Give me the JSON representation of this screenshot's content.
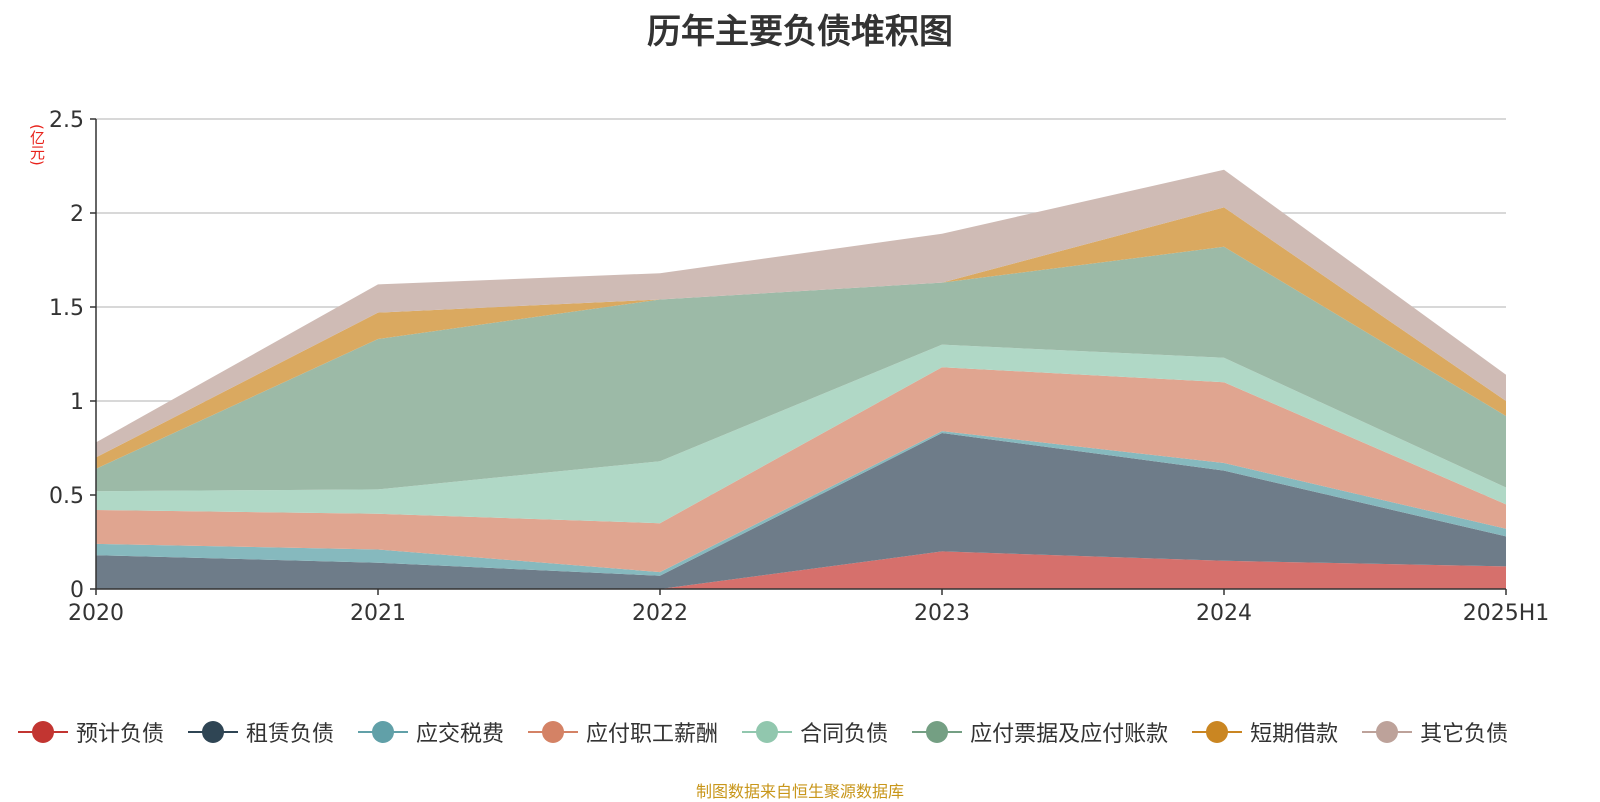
{
  "title": "历年主要负债堆积图",
  "unit_label": "(亿元)",
  "source_note": "制图数据来自恒生聚源数据库",
  "chart_data": {
    "type": "area",
    "stacked": true,
    "title": "历年主要负债堆积图",
    "ylabel": "(亿元)",
    "ylim": [
      0,
      2.5
    ],
    "yticks": [
      "0",
      "0.5",
      "1",
      "1.5",
      "2",
      "2.5"
    ],
    "x": [
      "2020",
      "2021",
      "2022",
      "2023",
      "2024",
      "2025H1"
    ],
    "grid": true,
    "legend_position": "bottom",
    "series": [
      {
        "name": "预计负债",
        "color": "#d6706c",
        "legend_color": "#c23531",
        "values": [
          0,
          0,
          0,
          0.2,
          0.15,
          0.12
        ]
      },
      {
        "name": "租赁负债",
        "color": "#6e7c89",
        "legend_color": "#2f4554",
        "values": [
          0.18,
          0.14,
          0.07,
          0.63,
          0.48,
          0.16
        ]
      },
      {
        "name": "应交税费",
        "color": "#86b9be",
        "legend_color": "#61a0a8",
        "values": [
          0.06,
          0.07,
          0.02,
          0.01,
          0.04,
          0.04
        ]
      },
      {
        "name": "应付职工薪酬",
        "color": "#e0a590",
        "legend_color": "#d48265",
        "values": [
          0.18,
          0.19,
          0.26,
          0.34,
          0.43,
          0.13
        ]
      },
      {
        "name": "合同负债",
        "color": "#b0d8c6",
        "legend_color": "#91c7ae",
        "values": [
          0.1,
          0.13,
          0.33,
          0.12,
          0.13,
          0.09
        ]
      },
      {
        "name": "应付票据及应付账款",
        "color": "#9cbaa7",
        "legend_color": "#749f83",
        "values": [
          0.12,
          0.8,
          0.86,
          0.33,
          0.59,
          0.38
        ]
      },
      {
        "name": "短期借款",
        "color": "#daa960",
        "legend_color": "#ca8622",
        "values": [
          0.06,
          0.14,
          0,
          0,
          0.21,
          0.08
        ]
      },
      {
        "name": "其它负债",
        "color": "#cfbbb5",
        "legend_color": "#bda29a",
        "values": [
          0.08,
          0.15,
          0.14,
          0.26,
          0.2,
          0.14
        ]
      }
    ]
  }
}
